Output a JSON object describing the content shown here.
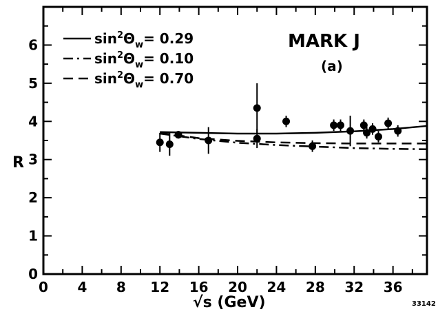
{
  "chart_data": {
    "type": "scatter",
    "title": "MARK J",
    "subtitle": "(a)",
    "xlabel": "√s (GeV)",
    "ylabel": "R",
    "xlim": [
      0,
      39.5
    ],
    "ylim": [
      0,
      7
    ],
    "x_ticks": [
      0,
      4,
      8,
      12,
      16,
      20,
      24,
      28,
      32,
      36
    ],
    "y_ticks": [
      0,
      1,
      2,
      3,
      4,
      5,
      6
    ],
    "grid": false,
    "legend_position": "top-left",
    "series": [
      {
        "name": "data",
        "points": [
          {
            "x": 12.0,
            "y": 3.45,
            "err": 0.25
          },
          {
            "x": 13.0,
            "y": 3.4,
            "err": 0.3
          },
          {
            "x": 13.9,
            "y": 3.65,
            "err": 0.1
          },
          {
            "x": 17.0,
            "y": 3.5,
            "err": 0.35
          },
          {
            "x": 22.0,
            "y": 4.35,
            "err": 0.65
          },
          {
            "x": 22.0,
            "y": 3.55,
            "err": 0.25
          },
          {
            "x": 25.0,
            "y": 4.0,
            "err": 0.15
          },
          {
            "x": 27.7,
            "y": 3.35,
            "err": 0.15
          },
          {
            "x": 29.9,
            "y": 3.9,
            "err": 0.15
          },
          {
            "x": 30.6,
            "y": 3.9,
            "err": 0.15
          },
          {
            "x": 31.6,
            "y": 3.75,
            "err": 0.4
          },
          {
            "x": 33.0,
            "y": 3.9,
            "err": 0.15
          },
          {
            "x": 33.3,
            "y": 3.7,
            "err": 0.15
          },
          {
            "x": 33.9,
            "y": 3.8,
            "err": 0.15
          },
          {
            "x": 34.5,
            "y": 3.6,
            "err": 0.15
          },
          {
            "x": 35.5,
            "y": 3.95,
            "err": 0.15
          },
          {
            "x": 36.5,
            "y": 3.75,
            "err": 0.15
          }
        ]
      },
      {
        "name": "sin²Θw = 0.29",
        "style": "solid",
        "x": [
          12,
          16,
          20,
          24,
          28,
          32,
          36,
          39.5
        ],
        "y": [
          3.72,
          3.7,
          3.68,
          3.68,
          3.7,
          3.74,
          3.8,
          3.88
        ]
      },
      {
        "name": "sin²Θw = 0.10",
        "style": "dashdot",
        "x": [
          12,
          16,
          20,
          24,
          28,
          32,
          36,
          39.5
        ],
        "y": [
          3.68,
          3.54,
          3.44,
          3.38,
          3.34,
          3.3,
          3.28,
          3.27
        ]
      },
      {
        "name": "sin²Θw = 0.70",
        "style": "dashed",
        "x": [
          12,
          16,
          20,
          24,
          28,
          32,
          36,
          39.5
        ],
        "y": [
          3.7,
          3.56,
          3.49,
          3.45,
          3.43,
          3.42,
          3.42,
          3.42
        ]
      }
    ],
    "legend": [
      {
        "prefix": "sin",
        "exp": "2",
        "sym": "Θ",
        "sub": "w",
        "value": "= 0.29",
        "style": "solid"
      },
      {
        "prefix": "sin",
        "exp": "2",
        "sym": "Θ",
        "sub": "w",
        "value": "= 0.10",
        "style": "dashdot"
      },
      {
        "prefix": "sin",
        "exp": "2",
        "sym": "Θ",
        "sub": "w",
        "value": "= 0.70",
        "style": "dashed"
      }
    ],
    "tick_labels_x": [
      "0",
      "4",
      "8",
      "12",
      "16",
      "20",
      "24",
      "28",
      "32",
      "36"
    ],
    "tick_labels_y": [
      "0",
      "1",
      "2",
      "3",
      "4",
      "5",
      "6"
    ],
    "figure_number": "33142"
  }
}
